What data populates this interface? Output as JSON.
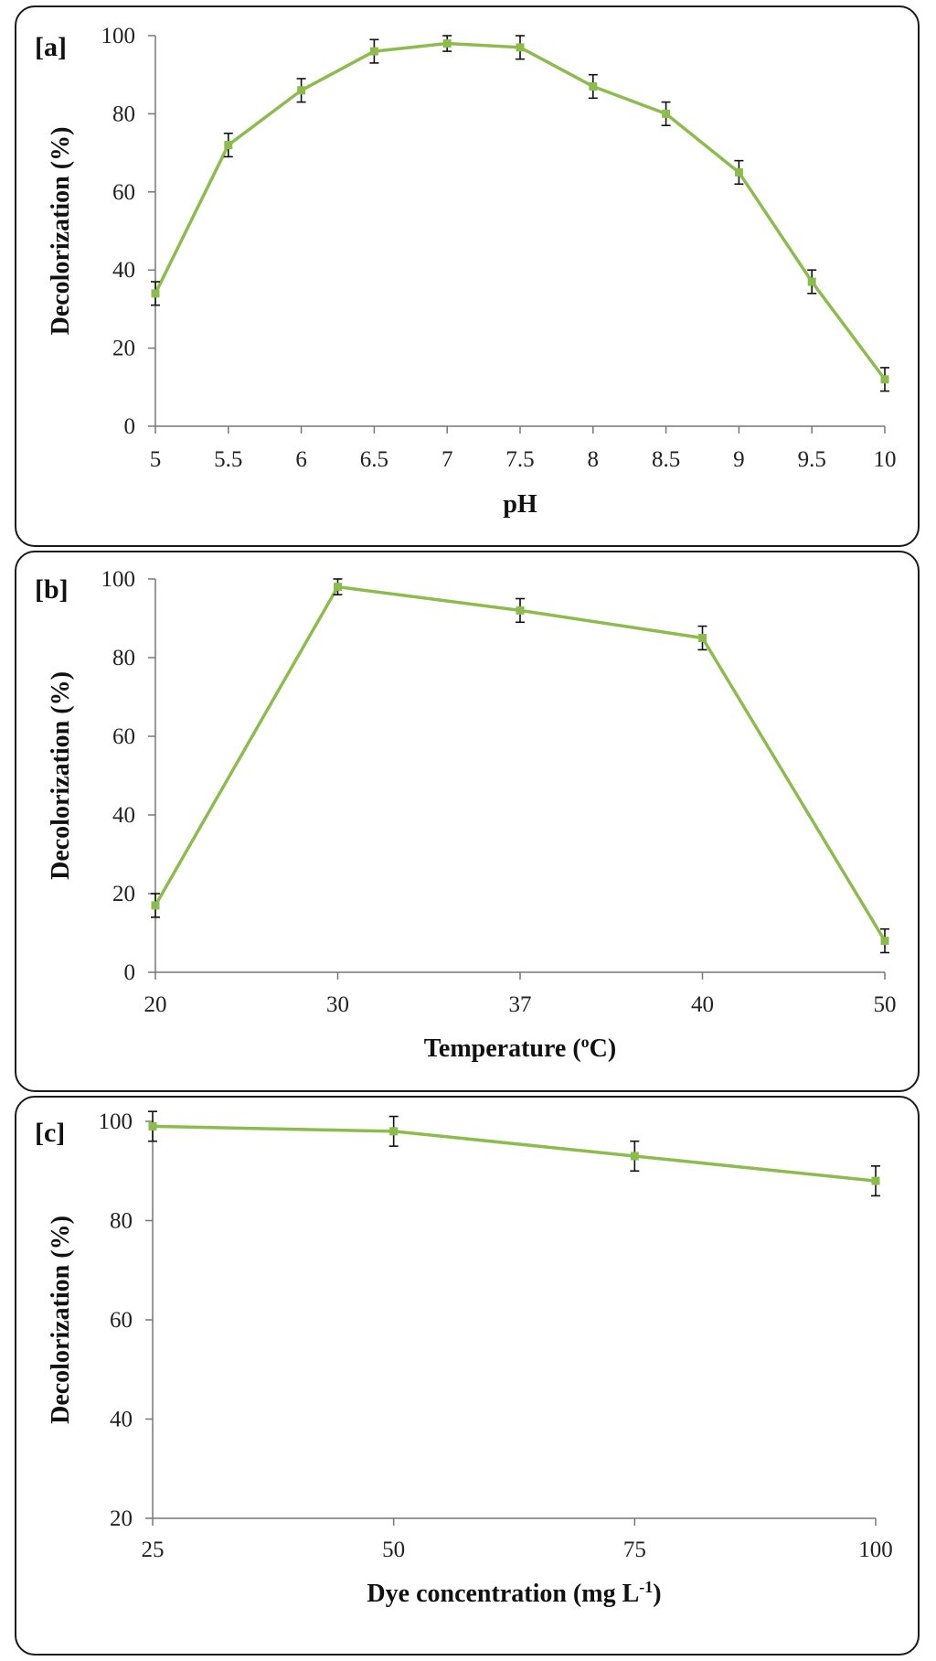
{
  "chart_data": [
    {
      "type": "line",
      "panel_label": "[a]",
      "xlabel": "pH",
      "ylabel": "Decolorization (%)",
      "categories": [
        "5",
        "5.5",
        "6",
        "6.5",
        "7",
        "7.5",
        "8",
        "8.5",
        "9",
        "9.5",
        "10"
      ],
      "values": [
        34,
        72,
        86,
        96,
        98,
        97,
        87,
        80,
        65,
        37,
        12
      ],
      "errors": [
        3,
        3,
        3,
        3,
        2,
        3,
        3,
        3,
        3,
        3,
        3
      ],
      "ylim": [
        0,
        100
      ],
      "yticks": [
        0,
        20,
        40,
        60,
        80,
        100
      ],
      "grid": false,
      "line_color": "#8cbd4c"
    },
    {
      "type": "line",
      "panel_label": "[b]",
      "xlabel_text": "Temperature (",
      "xlabel_sup": "o",
      "xlabel_tail": "C)",
      "ylabel": "Decolorization (%)",
      "categories": [
        "20",
        "30",
        "37",
        "40",
        "50"
      ],
      "values": [
        17,
        98,
        92,
        85,
        8
      ],
      "errors": [
        3,
        2,
        3,
        3,
        3
      ],
      "ylim": [
        0,
        100
      ],
      "yticks": [
        0,
        20,
        40,
        60,
        80,
        100
      ],
      "grid": false,
      "line_color": "#8cbd4c"
    },
    {
      "type": "line",
      "panel_label": "[c]",
      "xlabel_text": "Dye concentration (mg L",
      "xlabel_sup": "-1",
      "xlabel_tail": ")",
      "ylabel": "Decolorization (%)",
      "categories": [
        "25",
        "50",
        "75",
        "100"
      ],
      "values": [
        99,
        98,
        93,
        88
      ],
      "errors": [
        3,
        3,
        3,
        3
      ],
      "ylim": [
        20,
        100
      ],
      "yticks": [
        20,
        40,
        60,
        80,
        100
      ],
      "grid": false,
      "line_color": "#8cbd4c"
    }
  ]
}
